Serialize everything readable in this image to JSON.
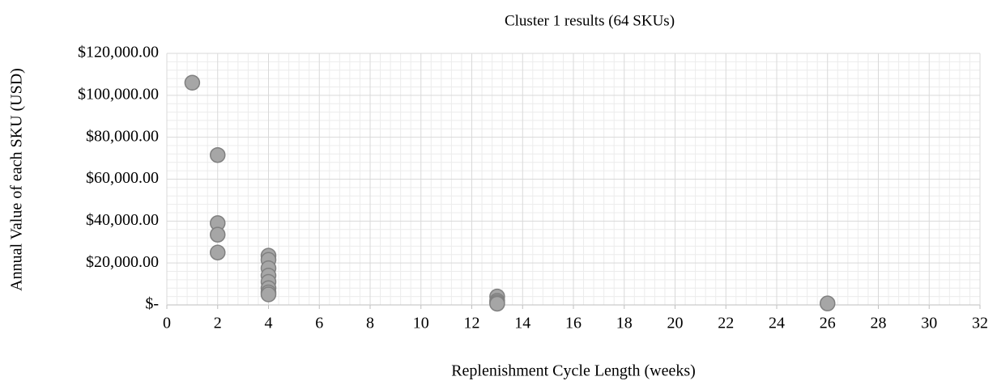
{
  "chart_data": {
    "type": "scatter",
    "title": "Cluster 1 results (64 SKUs)",
    "x_label": "Replenishment Cycle Length (weeks)",
    "y_label": "Annual Value of each SKU (USD)",
    "x": [
      1,
      2,
      2,
      2,
      2,
      4,
      4,
      4,
      4,
      4,
      4,
      4,
      4,
      13,
      13,
      13,
      13,
      26
    ],
    "values": [
      106000,
      71500,
      39000,
      33500,
      25000,
      23500,
      21500,
      17500,
      14000,
      11000,
      8000,
      6000,
      5000,
      4000,
      2000,
      1200,
      600,
      700
    ],
    "color": "#a6a6a6",
    "edge_color": "#808080",
    "xlim": [
      0,
      32
    ],
    "xticks": [
      0,
      2,
      4,
      6,
      8,
      10,
      12,
      14,
      16,
      18,
      20,
      22,
      24,
      26,
      28,
      30,
      32
    ],
    "ylim": [
      0,
      120000
    ],
    "yticks": [
      {
        "value": 0,
        "label": "$-"
      },
      {
        "value": 20000,
        "label": "$20,000.00"
      },
      {
        "value": 40000,
        "label": "$40,000.00"
      },
      {
        "value": 60000,
        "label": "$60,000.00"
      },
      {
        "value": 80000,
        "label": "$80,000.00"
      },
      {
        "value": 100000,
        "label": "$100,000.00"
      },
      {
        "value": 120000,
        "label": "$120,000.00"
      }
    ],
    "grid": true,
    "minor_grid": true
  }
}
